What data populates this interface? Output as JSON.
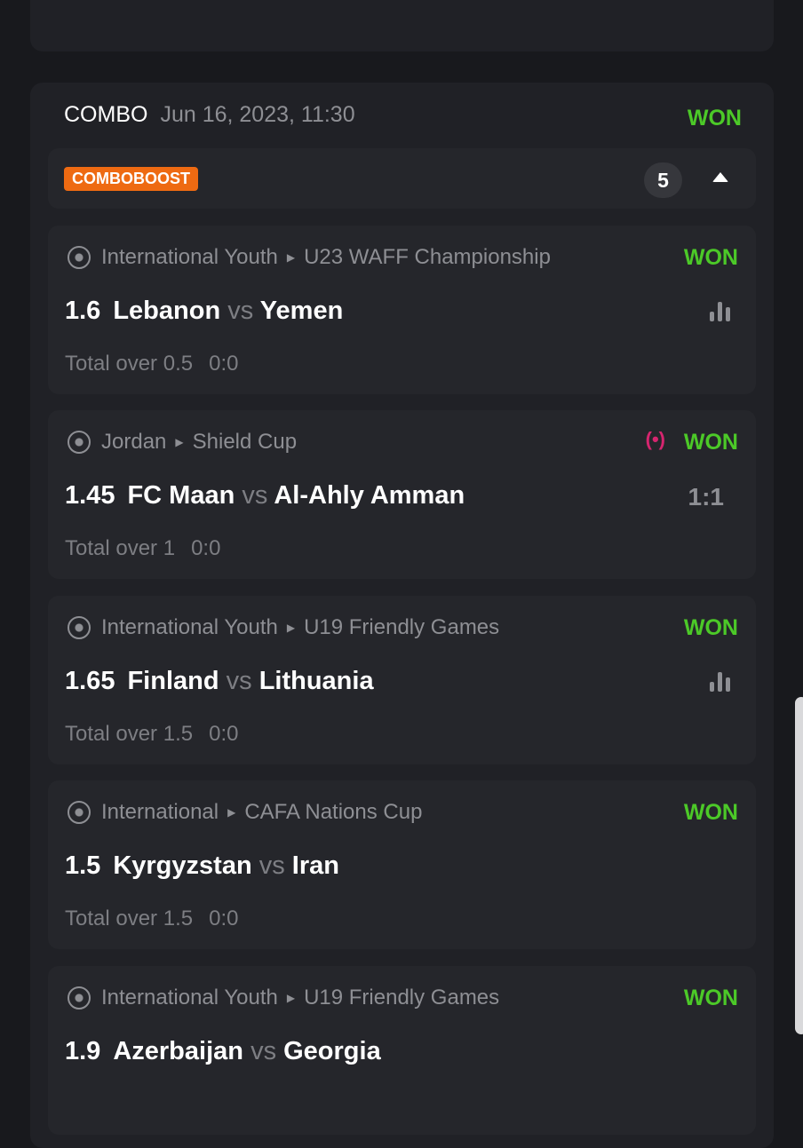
{
  "bet": {
    "type": "COMBO",
    "date": "Jun 16, 2023, 11:30",
    "status": "WON",
    "badge": "COMBOBOOST",
    "count": "5"
  },
  "colors": {
    "won": "#4cc928",
    "badge": "#ee6a12",
    "live": "#d6256f"
  },
  "matches": [
    {
      "country": "International Youth",
      "league": "U23 WAFF Championship",
      "status": "WON",
      "odds": "1.6",
      "home": "Lebanon",
      "vs": "vs",
      "away": "Yemen",
      "market": "Total over 0.5",
      "market_score": "0:0",
      "live": false,
      "icon": "stats-icon"
    },
    {
      "country": "Jordan",
      "league": "Shield Cup",
      "status": "WON",
      "odds": "1.45",
      "home": "FC Maan",
      "vs": "vs",
      "away": "Al-Ahly Amman",
      "market": "Total over 1",
      "market_score": "0:0",
      "live": true,
      "score": "1:1"
    },
    {
      "country": "International Youth",
      "league": "U19 Friendly Games",
      "status": "WON",
      "odds": "1.65",
      "home": "Finland",
      "vs": "vs",
      "away": "Lithuania",
      "market": "Total over 1.5",
      "market_score": "0:0",
      "live": false,
      "icon": "stats-icon"
    },
    {
      "country": "International",
      "league": "CAFA Nations Cup",
      "status": "WON",
      "odds": "1.5",
      "home": "Kyrgyzstan",
      "vs": "vs",
      "away": "Iran",
      "market": "Total over 1.5",
      "market_score": "0:0",
      "live": false
    },
    {
      "country": "International Youth",
      "league": "U19 Friendly Games",
      "status": "WON",
      "odds": "1.9",
      "home": "Azerbaijan",
      "vs": "vs",
      "away": "Georgia",
      "market": "",
      "market_score": "",
      "live": false
    }
  ]
}
